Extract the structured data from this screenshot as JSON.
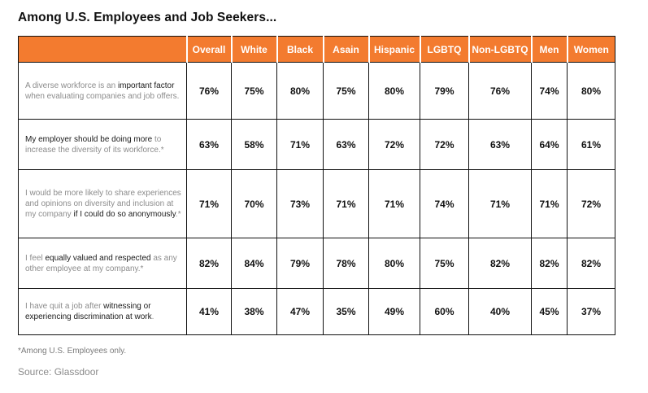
{
  "colors": {
    "header_bg": "#F37B2F",
    "header_text": "#ffffff",
    "emphasis_text": "#1a1a1a",
    "muted_text": "#8c8c8c",
    "border": "#111111"
  },
  "chart_data": {
    "type": "table",
    "title": "Among U.S. Employees and Job Seekers...",
    "columns": [
      "Overall",
      "White",
      "Black",
      "Asain",
      "Hispanic",
      "LGBTQ",
      "Non-LGBTQ",
      "Men",
      "Women"
    ],
    "value_suffix": "%",
    "rows": [
      {
        "statement": [
          {
            "text": "A diverse workforce is an ",
            "emphasis": false
          },
          {
            "text": "important factor",
            "emphasis": true
          },
          {
            "text": " when evaluating companies and job offers.",
            "emphasis": false
          }
        ],
        "values": [
          76,
          75,
          80,
          75,
          80,
          79,
          76,
          74,
          80
        ]
      },
      {
        "statement": [
          {
            "text": "My employer should be doing more",
            "emphasis": true
          },
          {
            "text": " to increase the diversity of its workforce.*",
            "emphasis": false
          }
        ],
        "values": [
          63,
          58,
          71,
          63,
          72,
          72,
          63,
          64,
          61
        ]
      },
      {
        "statement": [
          {
            "text": "I would be more likely to share experiences and opinions on diversity and inclusion at my company ",
            "emphasis": false
          },
          {
            "text": "if I could do so anonymously",
            "emphasis": true
          },
          {
            "text": ".*",
            "emphasis": false
          }
        ],
        "values": [
          71,
          70,
          73,
          71,
          71,
          74,
          71,
          71,
          72
        ]
      },
      {
        "statement": [
          {
            "text": "I feel ",
            "emphasis": false
          },
          {
            "text": "equally valued and respected",
            "emphasis": true
          },
          {
            "text": " as any other employee at my company.*",
            "emphasis": false
          }
        ],
        "values": [
          82,
          84,
          79,
          78,
          80,
          75,
          82,
          82,
          82
        ]
      },
      {
        "statement": [
          {
            "text": "I have quit a job after ",
            "emphasis": false
          },
          {
            "text": "witnessing or experiencing discrimination at work",
            "emphasis": true
          },
          {
            "text": ".",
            "emphasis": false
          }
        ],
        "values": [
          41,
          38,
          47,
          35,
          49,
          60,
          40,
          45,
          37
        ]
      }
    ]
  },
  "footnote": "*Among U.S. Employees only.",
  "source": "Source: Glassdoor"
}
